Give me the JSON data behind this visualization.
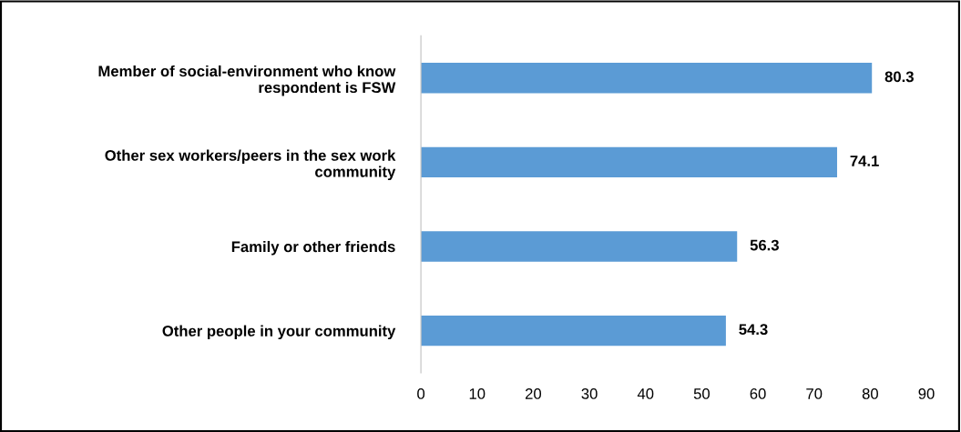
{
  "chart_data": {
    "type": "bar",
    "orientation": "horizontal",
    "categories": [
      "Member of social-environment who know respondent is FSW",
      "Other sex workers/peers in the sex work community",
      "Family or other friends",
      "Other people in your community"
    ],
    "values": [
      80.3,
      74.1,
      56.3,
      54.3
    ],
    "color": "#5b9bd5",
    "xlim": [
      0,
      90
    ],
    "xticks": [
      0,
      10,
      20,
      30,
      40,
      50,
      60,
      70,
      80,
      90
    ],
    "data_labels": true,
    "grid": false,
    "legend": false
  }
}
